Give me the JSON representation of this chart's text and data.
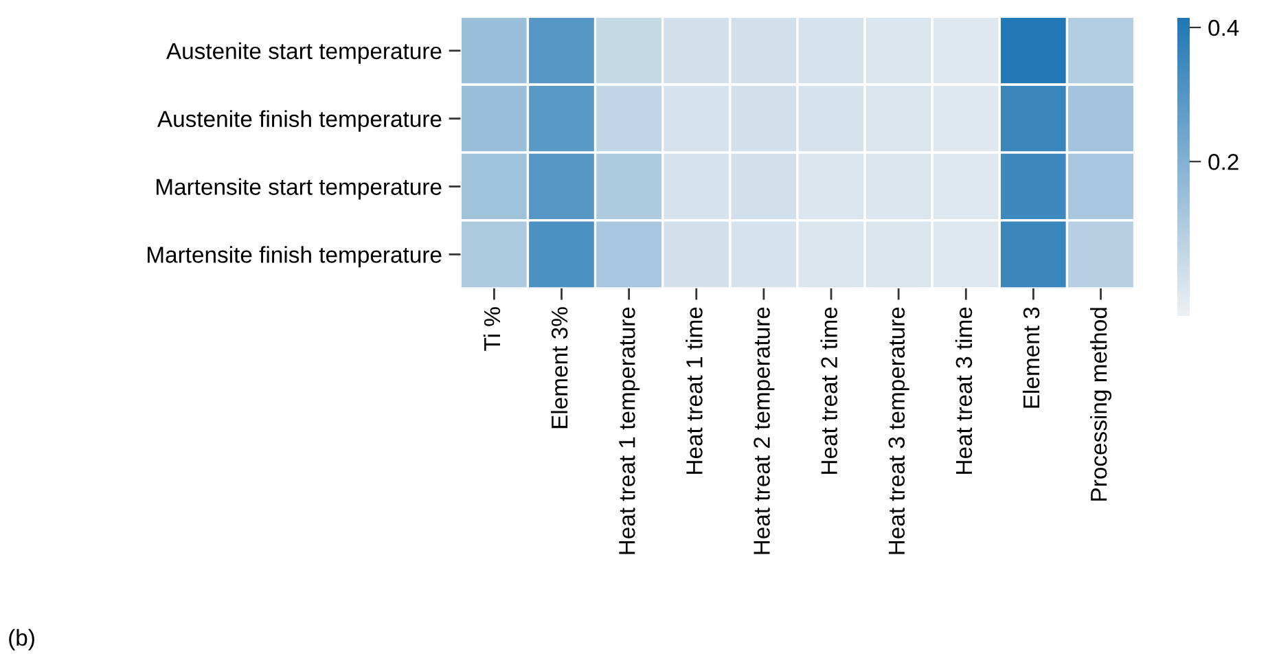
{
  "chart_data": {
    "type": "heatmap",
    "categories": [
      "Ti %",
      "Element 3%",
      "Heat treat 1 temperature",
      "Heat treat 1 time",
      "Heat treat 2 temperature",
      "Heat treat 2 time",
      "Heat treat 3 temperature",
      "Heat treat 3 time",
      "Element 3",
      "Processing method"
    ],
    "y_categories": [
      "Austenite start temperature",
      "Austenite finish temperature",
      "Martensite start temperature",
      "Martensite finish temperature"
    ],
    "cells": [
      [
        0.15,
        0.3,
        0.06,
        0.03,
        0.03,
        0.02,
        0.01,
        0.0,
        0.41,
        0.1
      ],
      [
        0.15,
        0.29,
        0.07,
        0.02,
        0.03,
        0.02,
        0.01,
        0.0,
        0.36,
        0.13
      ],
      [
        0.14,
        0.3,
        0.11,
        0.02,
        0.03,
        0.01,
        0.01,
        0.0,
        0.35,
        0.12
      ],
      [
        0.11,
        0.32,
        0.12,
        0.03,
        0.02,
        0.01,
        0.01,
        0.0,
        0.36,
        0.09
      ]
    ],
    "clim": [
      -0.03,
      0.415
    ],
    "cticks": [
      0.2,
      0.4
    ],
    "annotations": [
      "(b)"
    ]
  }
}
